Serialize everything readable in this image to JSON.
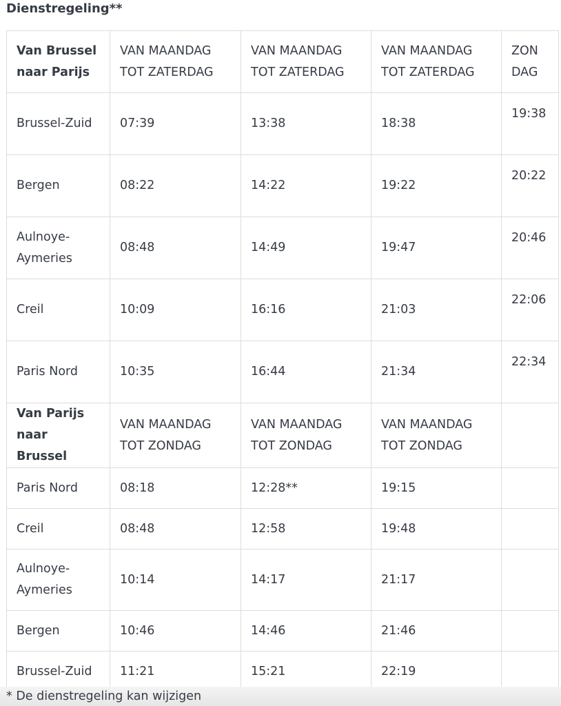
{
  "title": "Dienstregeling**",
  "section1": {
    "header": [
      "Van Brussel naar Parijs",
      "VAN MAANDAG TOT ZATERDAG",
      "VAN MAANDAG TOT ZATERDAG",
      "VAN MAANDAG TOT ZATERDAG",
      "ZON DAG"
    ],
    "rows": [
      [
        "Brussel-Zuid",
        "07:39",
        "13:38",
        "18:38",
        "19:38"
      ],
      [
        "Bergen",
        "08:22",
        "14:22",
        "19:22",
        "20:22"
      ],
      [
        "Aulnoye-Aymeries",
        "08:48",
        "14:49",
        "19:47",
        "20:46"
      ],
      [
        "Creil",
        "10:09",
        "16:16",
        "21:03",
        "22:06"
      ],
      [
        "Paris Nord",
        "10:35",
        "16:44",
        "21:34",
        "22:34"
      ]
    ]
  },
  "section2": {
    "header": [
      "Van Parijs naar Brussel",
      "VAN MAANDAG TOT ZONDAG",
      "VAN MAANDAG TOT ZONDAG",
      "VAN MAANDAG TOT ZONDAG",
      ""
    ],
    "rows": [
      [
        "Paris Nord",
        "08:18",
        "12:28**",
        "19:15",
        ""
      ],
      [
        "Creil",
        "08:48",
        "12:58",
        "19:48",
        ""
      ],
      [
        "Aulnoye-Aymeries",
        "10:14",
        "14:17",
        "21:17",
        ""
      ],
      [
        "Bergen",
        "10:46",
        "14:46",
        "21:46",
        ""
      ],
      [
        "Brussel-Zuid",
        "11:21",
        "15:21",
        "22:19",
        ""
      ]
    ]
  },
  "footnote": "* De dienstregeling kan wijzigen"
}
